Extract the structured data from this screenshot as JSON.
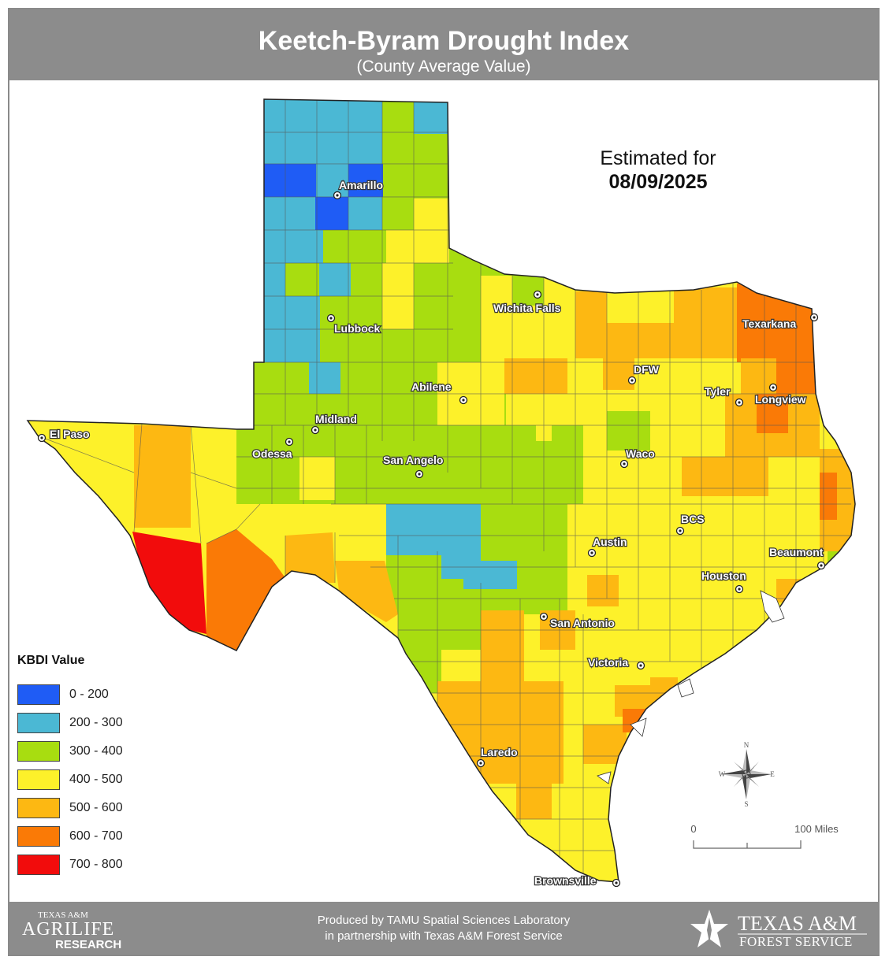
{
  "header": {
    "title": "Keetch-Byram Drought Index",
    "subtitle": "(County Average Value)"
  },
  "estimate": {
    "label": "Estimated for",
    "date": "08/09/2025"
  },
  "legend": {
    "title": "KBDI Value",
    "items": [
      {
        "label": "0 - 200",
        "color": "#1f5cf5"
      },
      {
        "label": "200 - 300",
        "color": "#4bb8d4"
      },
      {
        "label": "300 - 400",
        "color": "#a8dd10"
      },
      {
        "label": "400 - 500",
        "color": "#fdf12a"
      },
      {
        "label": "500 - 600",
        "color": "#fdb812"
      },
      {
        "label": "600 - 700",
        "color": "#fa7a06"
      },
      {
        "label": "700 - 800",
        "color": "#f20c0c"
      }
    ]
  },
  "cities": [
    "Amarillo",
    "Lubbock",
    "Wichita Falls",
    "Texarkana",
    "DFW",
    "Tyler",
    "Longview",
    "Abilene",
    "Midland",
    "El Paso",
    "Odessa",
    "San Angelo",
    "Waco",
    "BCS",
    "Austin",
    "Beaumont",
    "Houston",
    "San Antonio",
    "Victoria",
    "Laredo",
    "Brownsville"
  ],
  "scale": {
    "zero": "0",
    "end": "100 Miles"
  },
  "compass": {
    "n": "N",
    "e": "E",
    "s": "S",
    "w": "W"
  },
  "footer": {
    "credit_line1": "Produced by TAMU Spatial Sciences Laboratory",
    "credit_line2": "in partnership with Texas A&M Forest Service",
    "logo_left_top": "TEXAS A&M",
    "logo_left_main": "AGRILIFE",
    "logo_left_bottom": "RESEARCH",
    "logo_right_main": "TEXAS A&M",
    "logo_right_sub": "FOREST SERVICE"
  }
}
